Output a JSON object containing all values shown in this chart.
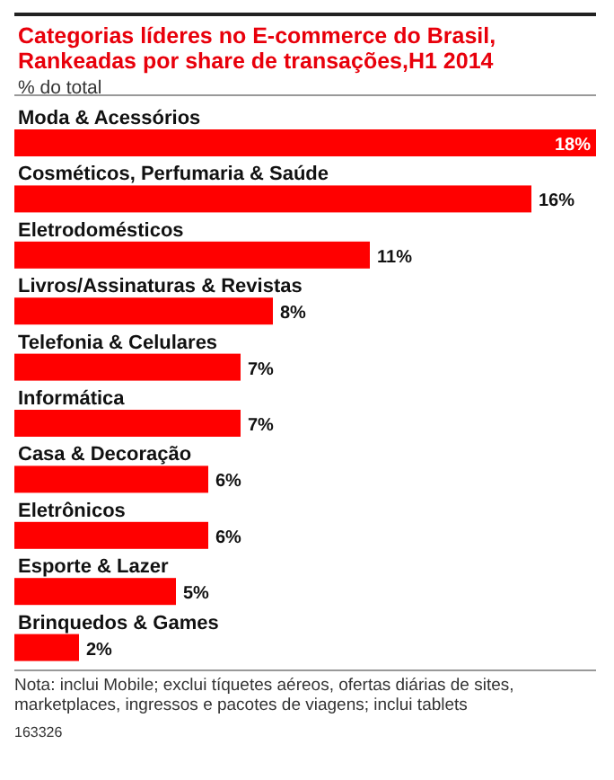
{
  "chart_data": {
    "type": "bar",
    "orientation": "horizontal",
    "title": "Categorias líderes no E-commerce do Brasil, Rankeadas por share de transações,H1 2014",
    "subtitle": "% do total",
    "categories": [
      "Moda & Acessórios",
      "Cosméticos, Perfumaria & Saúde",
      "Eletrodomésticos",
      "Livros/Assinaturas & Revistas",
      "Telefonia & Celulares",
      "Informática",
      "Casa & Decoração",
      "Eletrônicos",
      "Esporte & Lazer",
      "Brinquedos & Games"
    ],
    "values": [
      18,
      16,
      11,
      8,
      7,
      7,
      6,
      6,
      5,
      2
    ],
    "value_labels": [
      "18%",
      "16%",
      "11%",
      "8%",
      "7%",
      "7%",
      "6%",
      "6%",
      "5%",
      "2%"
    ],
    "color": "#ff0000",
    "data_labels": true,
    "annotations": [
      "Nota: inclui Mobile; exclui tíquetes aéreos, ofertas diárias de sites, marketplaces, ingressos e pacotes de viagens; inclui tablets",
      "163326"
    ]
  }
}
